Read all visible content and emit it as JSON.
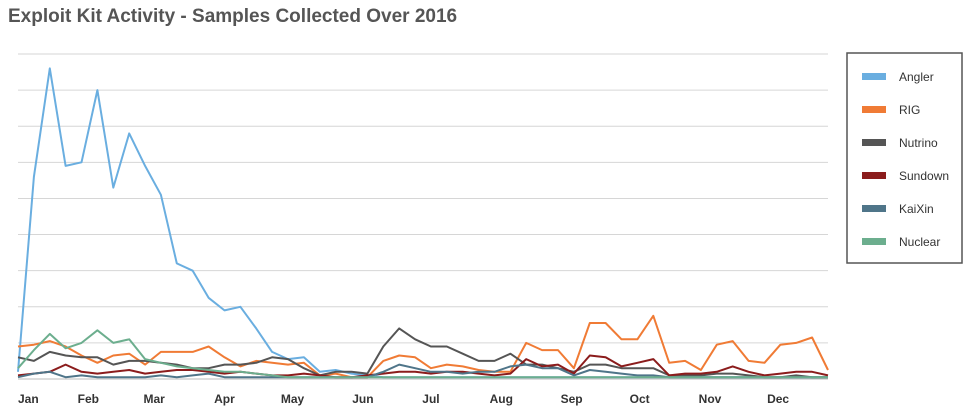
{
  "chart_data": {
    "type": "line",
    "title": "Exploit Kit Activity - Samples Collected Over 2016",
    "xlabel": "",
    "ylabel": "",
    "x_ticks": [
      "Jan",
      "Feb",
      "Mar",
      "Apr",
      "May",
      "Jun",
      "Jul",
      "Aug",
      "Sep",
      "Oct",
      "Nov",
      "Dec"
    ],
    "ylim": [
      0,
      9
    ],
    "y_gridlines": 9,
    "grid": "horizontal",
    "legend_position": "right",
    "x": [
      "2016-01-01",
      "2016-01-08",
      "2016-01-15",
      "2016-01-22",
      "2016-01-29",
      "2016-02-05",
      "2016-02-12",
      "2016-02-19",
      "2016-02-26",
      "2016-03-04",
      "2016-03-11",
      "2016-03-18",
      "2016-03-25",
      "2016-04-01",
      "2016-04-08",
      "2016-04-15",
      "2016-04-22",
      "2016-04-29",
      "2016-05-06",
      "2016-05-13",
      "2016-05-20",
      "2016-05-27",
      "2016-06-03",
      "2016-06-10",
      "2016-06-17",
      "2016-06-24",
      "2016-07-01",
      "2016-07-08",
      "2016-07-15",
      "2016-07-22",
      "2016-07-29",
      "2016-08-05",
      "2016-08-12",
      "2016-08-19",
      "2016-08-26",
      "2016-09-02",
      "2016-09-09",
      "2016-09-16",
      "2016-09-23",
      "2016-09-30",
      "2016-10-07",
      "2016-10-14",
      "2016-10-21",
      "2016-10-28",
      "2016-11-04",
      "2016-11-11",
      "2016-11-18",
      "2016-11-25",
      "2016-12-02",
      "2016-12-09",
      "2016-12-16",
      "2016-12-23"
    ],
    "series": [
      {
        "name": "Angler",
        "color": "#6aaee0",
        "values": [
          0.2,
          5.6,
          8.6,
          5.9,
          6.0,
          8.0,
          5.3,
          6.8,
          5.9,
          5.1,
          3.2,
          3.0,
          2.25,
          1.9,
          2.0,
          1.4,
          0.75,
          0.55,
          0.6,
          0.2,
          0.25,
          0.15,
          0.1,
          0.05,
          0.05,
          0.05,
          0.05,
          0.05,
          0.05,
          0.05,
          0.05,
          0.05,
          0.05,
          0.05,
          0.05,
          0.05,
          0.05,
          0.05,
          0.05,
          0.05,
          0.05,
          0.05,
          0.05,
          0.05,
          0.05,
          0.05,
          0.05,
          0.05,
          0.05,
          0.05,
          0.05,
          0.05
        ]
      },
      {
        "name": "RIG",
        "color": "#f07b35",
        "values": [
          0.9,
          0.95,
          1.05,
          0.9,
          0.65,
          0.45,
          0.65,
          0.7,
          0.4,
          0.75,
          0.75,
          0.75,
          0.9,
          0.6,
          0.35,
          0.5,
          0.45,
          0.4,
          0.45,
          0.1,
          0.15,
          0.05,
          0.05,
          0.5,
          0.65,
          0.6,
          0.3,
          0.4,
          0.35,
          0.25,
          0.2,
          0.2,
          1.0,
          0.8,
          0.8,
          0.3,
          1.55,
          1.55,
          1.1,
          1.1,
          1.75,
          0.45,
          0.5,
          0.25,
          0.95,
          1.05,
          0.5,
          0.45,
          0.95,
          1.0,
          1.15,
          0.25
        ]
      },
      {
        "name": "Nutrino",
        "color": "#555555",
        "values": [
          0.6,
          0.5,
          0.75,
          0.65,
          0.6,
          0.6,
          0.4,
          0.5,
          0.5,
          0.45,
          0.4,
          0.3,
          0.3,
          0.4,
          0.4,
          0.45,
          0.6,
          0.55,
          0.3,
          0.1,
          0.2,
          0.2,
          0.15,
          0.9,
          1.4,
          1.1,
          0.9,
          0.9,
          0.7,
          0.5,
          0.5,
          0.7,
          0.4,
          0.4,
          0.3,
          0.2,
          0.4,
          0.4,
          0.3,
          0.3,
          0.3,
          0.1,
          0.1,
          0.1,
          0.15,
          0.15,
          0.1,
          0.05,
          0.05,
          0.1,
          0.05,
          0.05
        ]
      },
      {
        "name": "Sundown",
        "color": "#8b1c1c",
        "values": [
          0.1,
          0.15,
          0.2,
          0.4,
          0.2,
          0.15,
          0.2,
          0.25,
          0.15,
          0.2,
          0.25,
          0.25,
          0.2,
          0.15,
          0.2,
          0.15,
          0.1,
          0.1,
          0.15,
          0.1,
          0.05,
          0.05,
          0.1,
          0.15,
          0.2,
          0.2,
          0.15,
          0.2,
          0.2,
          0.15,
          0.1,
          0.15,
          0.55,
          0.35,
          0.4,
          0.15,
          0.65,
          0.6,
          0.35,
          0.45,
          0.55,
          0.1,
          0.15,
          0.15,
          0.2,
          0.35,
          0.2,
          0.1,
          0.15,
          0.2,
          0.2,
          0.1
        ]
      },
      {
        "name": "KaiXin",
        "color": "#4f7589",
        "values": [
          0.05,
          0.15,
          0.2,
          0.05,
          0.1,
          0.05,
          0.05,
          0.05,
          0.05,
          0.1,
          0.05,
          0.1,
          0.15,
          0.05,
          0.05,
          0.05,
          0.05,
          0.05,
          0.05,
          0.05,
          0.05,
          0.05,
          0.05,
          0.2,
          0.4,
          0.3,
          0.2,
          0.2,
          0.15,
          0.2,
          0.2,
          0.35,
          0.4,
          0.3,
          0.3,
          0.1,
          0.25,
          0.2,
          0.15,
          0.1,
          0.1,
          0.05,
          0.05,
          0.05,
          0.05,
          0.05,
          0.05,
          0.05,
          0.05,
          0.05,
          0.05,
          0.05
        ]
      },
      {
        "name": "Nuclear",
        "color": "#6cae8e",
        "values": [
          0.3,
          0.8,
          1.25,
          0.85,
          1.0,
          1.35,
          1.0,
          1.1,
          0.55,
          0.45,
          0.35,
          0.3,
          0.25,
          0.2,
          0.2,
          0.15,
          0.1,
          0.05,
          0.05,
          0.05,
          0.05,
          0.05,
          0.05,
          0.05,
          0.05,
          0.05,
          0.05,
          0.05,
          0.05,
          0.05,
          0.05,
          0.05,
          0.05,
          0.05,
          0.05,
          0.05,
          0.05,
          0.05,
          0.05,
          0.05,
          0.05,
          0.05,
          0.05,
          0.05,
          0.05,
          0.05,
          0.05,
          0.05,
          0.05,
          0.05,
          0.05,
          0.05
        ]
      }
    ]
  }
}
